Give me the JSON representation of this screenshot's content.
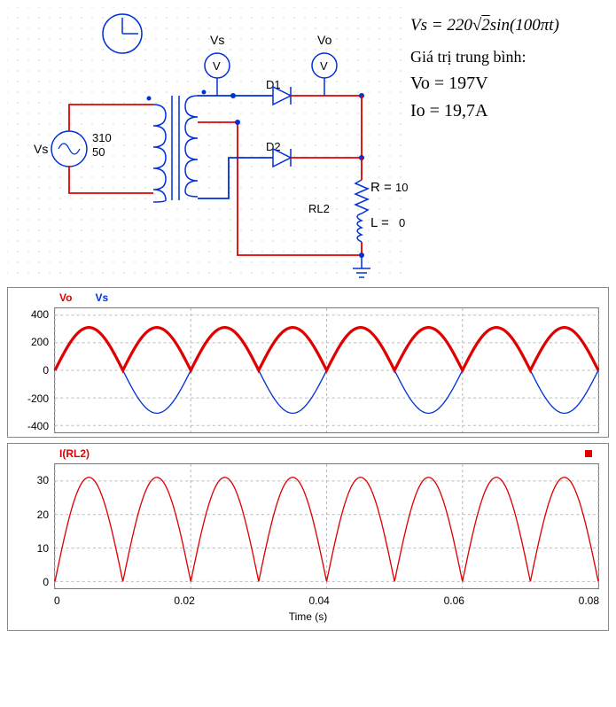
{
  "schematic": {
    "source_label": "Vs",
    "source_params": [
      "310",
      "50"
    ],
    "voltmeter1": "Vs",
    "voltmeter2": "Vo",
    "vm_symbol": "V",
    "diode1": "D1",
    "diode2": "D2",
    "load_label": "RL2",
    "R_label": "R =",
    "R_value": "10",
    "L_label": "L =",
    "L_value": "0",
    "colors": {
      "wire_red": "#e00000",
      "wire_blue": "#0030d8",
      "text": "#0030d8"
    }
  },
  "equations": {
    "vs_formula_prefix": "Vs = 220",
    "vs_formula_sqrt": "2",
    "vs_formula_suffix": "sin(100πt)",
    "avg_heading": "Giá trị trung bình:",
    "vo_line": "Vo = 197V",
    "io_line": "Io = 19,7A"
  },
  "chart1": {
    "legend": [
      {
        "label": "Vo",
        "color": "#e00000"
      },
      {
        "label": "Vs",
        "color": "#0030d8"
      }
    ],
    "ylim": [
      -450,
      450
    ],
    "yticks": [
      400,
      200,
      0,
      -200,
      -400
    ],
    "xlim": [
      0,
      0.08
    ],
    "series": {
      "vs": {
        "amplitude": 311,
        "freq_hz": 50,
        "color": "#0030d8",
        "stroke_width": 1.3
      },
      "vo": {
        "amplitude": 311,
        "freq_hz": 50,
        "color": "#e00000",
        "stroke_width": 3.2,
        "rectified": true
      }
    },
    "grid_color": "#bbbbbb"
  },
  "chart2": {
    "legend": [
      {
        "label": "I(RL2)",
        "color": "#e00000"
      }
    ],
    "ylim": [
      -2,
      35
    ],
    "yticks": [
      30,
      20,
      10,
      0
    ],
    "xlim": [
      0,
      0.08
    ],
    "series": {
      "irl2": {
        "amplitude": 31.1,
        "freq_hz": 50,
        "color": "#e00000",
        "stroke_width": 1.3,
        "rectified": true
      }
    },
    "has_red_square": true,
    "grid_color": "#bbbbbb"
  },
  "xaxis": {
    "ticks": [
      "0",
      "0.02",
      "0.04",
      "0.06",
      "0.08"
    ],
    "label": "Time (s)"
  }
}
